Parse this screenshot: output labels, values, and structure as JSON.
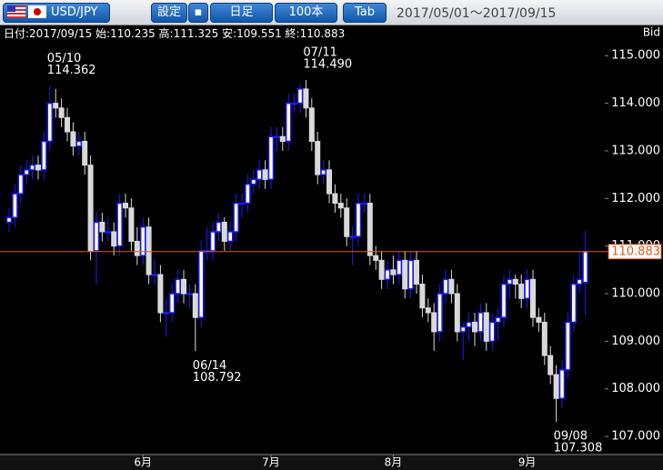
{
  "toolbar": {
    "pair": "USD/JPY",
    "buttons": [
      "設定",
      "日足",
      "100本",
      "Tab"
    ],
    "range": "2017/05/01～2017/09/15"
  },
  "info": {
    "labels": [
      "日付:",
      "始:",
      "高:",
      "安:",
      "終:"
    ],
    "date": "2017/09/15"
  },
  "chart_data": {
    "type": "candlestick",
    "price_label": "Bid",
    "up_color": "#1a1aff",
    "down_color": "#d9d9d9",
    "last_line_color": "#e05a1a",
    "ylim": [
      106.62,
      115.31
    ],
    "yticks": [
      {
        "value": 107,
        "label": "107.000"
      },
      {
        "value": 108,
        "label": "108.000"
      },
      {
        "value": 109,
        "label": "109.000"
      },
      {
        "value": 110,
        "label": "110.000"
      },
      {
        "value": 111,
        "label": "111.000"
      },
      {
        "value": 112,
        "label": "112.000"
      },
      {
        "value": 113,
        "label": "113.000"
      },
      {
        "value": 114,
        "label": "114.000"
      },
      {
        "value": 115,
        "label": "115.000"
      }
    ],
    "categories": [
      null,
      null,
      null,
      null,
      null,
      null,
      null,
      null,
      null,
      null,
      null,
      null,
      null,
      null,
      null,
      null,
      null,
      null,
      null,
      null,
      null,
      null,
      null,
      "6月",
      null,
      null,
      null,
      null,
      null,
      null,
      null,
      null,
      null,
      null,
      null,
      null,
      null,
      null,
      null,
      null,
      null,
      null,
      null,
      null,
      null,
      "7月",
      null,
      null,
      null,
      null,
      null,
      null,
      null,
      null,
      null,
      null,
      null,
      null,
      null,
      null,
      null,
      null,
      null,
      null,
      null,
      null,
      "8月",
      null,
      null,
      null,
      null,
      null,
      null,
      null,
      null,
      null,
      null,
      null,
      null,
      null,
      null,
      null,
      null,
      null,
      null,
      null,
      null,
      null,
      null,
      "9月",
      null,
      null,
      null,
      null,
      null,
      null,
      null,
      null,
      null,
      null
    ],
    "open": [
      111.5,
      111.6,
      112.1,
      112.5,
      112.6,
      112.7,
      112.6,
      113.2,
      114.0,
      113.9,
      113.7,
      113.4,
      113.1,
      113.2,
      112.7,
      110.9,
      111.5,
      111.3,
      111.3,
      111.0,
      111.9,
      111.8,
      111.1,
      110.8,
      111.4,
      110.4,
      110.4,
      109.6,
      109.6,
      110.0,
      110.3,
      110.0,
      110.0,
      109.5,
      110.9,
      110.9,
      111.3,
      111.5,
      111.1,
      111.3,
      111.9,
      111.9,
      112.3,
      112.4,
      112.6,
      112.4,
      113.3,
      113.3,
      113.2,
      114.0,
      114.0,
      114.3,
      113.9,
      113.2,
      112.5,
      112.6,
      112.1,
      111.9,
      111.8,
      111.2,
      111.2,
      111.9,
      111.9,
      110.8,
      110.7,
      110.3,
      110.5,
      110.4,
      110.7,
      110.1,
      110.7,
      110.2,
      109.7,
      109.6,
      109.2,
      110.0,
      110.3,
      110.0,
      109.2,
      109.3,
      109.4,
      109.2,
      109.6,
      109.0,
      109.4,
      109.5,
      110.2,
      110.3,
      110.2,
      109.9,
      110.3,
      109.5,
      109.4,
      108.7,
      108.3,
      107.8,
      108.4,
      109.4,
      110.2,
      110.235
    ],
    "high": [
      111.8,
      112.3,
      112.7,
      112.8,
      112.9,
      112.9,
      113.4,
      114.362,
      114.3,
      114.1,
      113.9,
      113.6,
      113.4,
      113.4,
      112.9,
      111.7,
      111.7,
      111.6,
      111.5,
      112.1,
      112.1,
      112.0,
      111.4,
      111.6,
      111.6,
      110.7,
      110.6,
      109.9,
      110.2,
      110.5,
      110.5,
      110.2,
      110.2,
      111.1,
      111.4,
      111.5,
      111.7,
      111.6,
      111.5,
      112.1,
      112.1,
      112.5,
      112.6,
      112.8,
      112.8,
      113.5,
      113.5,
      113.5,
      114.2,
      114.2,
      114.4,
      114.49,
      114.1,
      113.4,
      112.8,
      112.8,
      112.3,
      112.1,
      112.0,
      111.4,
      112.1,
      112.1,
      112.1,
      111.0,
      110.9,
      110.7,
      110.8,
      110.9,
      110.9,
      110.9,
      110.9,
      110.4,
      109.9,
      109.8,
      110.2,
      110.5,
      110.5,
      110.2,
      109.4,
      109.6,
      109.6,
      109.8,
      109.8,
      109.6,
      109.7,
      110.4,
      110.5,
      110.4,
      110.4,
      110.5,
      110.5,
      109.7,
      109.6,
      108.9,
      108.5,
      108.6,
      109.6,
      110.4,
      110.9,
      111.325
    ],
    "low": [
      111.3,
      111.4,
      111.9,
      112.3,
      112.4,
      112.4,
      112.4,
      113.0,
      113.7,
      113.5,
      113.2,
      112.9,
      112.9,
      112.5,
      110.7,
      110.2,
      111.1,
      111.1,
      110.8,
      110.8,
      111.6,
      110.9,
      110.6,
      110.6,
      110.2,
      110.2,
      109.4,
      109.1,
      109.4,
      109.8,
      109.8,
      109.7,
      108.792,
      109.3,
      110.7,
      110.7,
      111.1,
      110.9,
      110.9,
      111.1,
      111.6,
      111.7,
      112.1,
      112.2,
      112.2,
      112.2,
      113.0,
      113.0,
      113.0,
      113.8,
      113.8,
      113.7,
      113.0,
      112.3,
      112.3,
      111.9,
      111.7,
      111.6,
      111.0,
      110.6,
      111.0,
      111.7,
      110.6,
      110.5,
      110.1,
      110.1,
      110.2,
      110.2,
      109.9,
      109.9,
      110.0,
      109.5,
      109.4,
      108.8,
      109.0,
      109.8,
      109.8,
      109.0,
      108.6,
      109.0,
      108.9,
      109.0,
      108.8,
      108.8,
      109.0,
      109.3,
      109.9,
      109.9,
      109.7,
      109.7,
      109.3,
      109.2,
      108.5,
      108.1,
      107.308,
      107.6,
      108.2,
      109.2,
      110.0,
      109.551
    ],
    "close": [
      111.6,
      112.1,
      112.5,
      112.6,
      112.7,
      112.6,
      113.2,
      114.0,
      113.9,
      113.7,
      113.4,
      113.1,
      113.2,
      112.7,
      110.9,
      111.5,
      111.3,
      111.3,
      111.0,
      111.9,
      111.8,
      111.1,
      110.8,
      111.4,
      110.4,
      110.4,
      109.6,
      109.6,
      110.0,
      110.3,
      110.0,
      110.0,
      109.5,
      110.9,
      110.9,
      111.3,
      111.5,
      111.1,
      111.3,
      111.9,
      111.9,
      112.3,
      112.4,
      112.6,
      112.4,
      113.3,
      113.3,
      113.2,
      114.0,
      114.0,
      114.3,
      113.9,
      113.2,
      112.5,
      112.6,
      112.1,
      111.9,
      111.8,
      111.2,
      111.2,
      111.9,
      111.9,
      110.8,
      110.7,
      110.3,
      110.5,
      110.4,
      110.7,
      110.1,
      110.7,
      110.2,
      109.7,
      109.6,
      109.2,
      110.0,
      110.3,
      110.0,
      109.2,
      109.3,
      109.4,
      109.2,
      109.6,
      109.0,
      109.4,
      109.5,
      110.2,
      110.3,
      110.2,
      109.9,
      110.3,
      109.5,
      109.4,
      108.7,
      108.3,
      107.8,
      108.4,
      109.4,
      110.2,
      110.3,
      110.883
    ],
    "annotations": [
      {
        "date": "05/10",
        "label": "114.362"
      },
      {
        "date": "07/11",
        "label": "114.490"
      },
      {
        "date": "06/14",
        "label": "108.792"
      },
      {
        "date": "09/08",
        "label": "107.308"
      }
    ]
  }
}
